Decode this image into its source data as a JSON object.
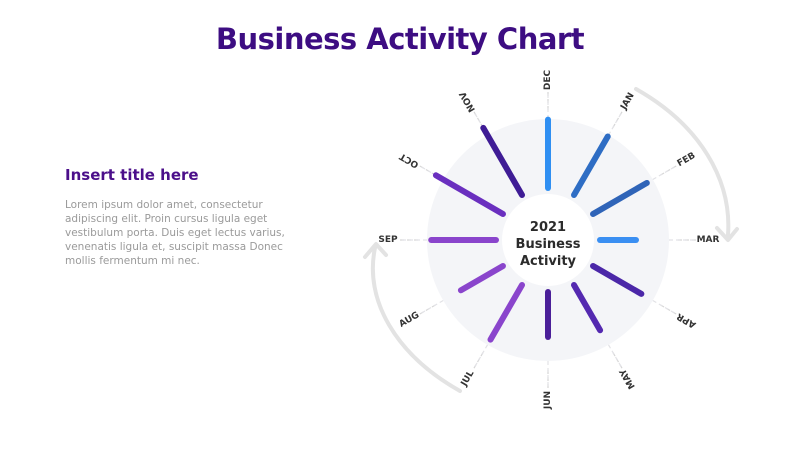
{
  "title": "Business Activity Chart",
  "side": {
    "title": "Insert title here",
    "body": "Lorem ipsum dolor amet, consectetur adipiscing elit. Proin cursus ligula eget vestibulum porta. Duis eget lectus varius, venenatis ligula et, suscipit massa Donec mollis fermentum mi nec."
  },
  "chart_data": {
    "type": "radial-bar",
    "center_label": [
      "2021",
      "Business",
      "Activity"
    ],
    "categories": [
      "DEC",
      "JAN",
      "FEB",
      "MAR",
      "APR",
      "MAY",
      "JUN",
      "JUL",
      "AUG",
      "SEP",
      "OCT",
      "NOV"
    ],
    "values": [
      0.76,
      0.75,
      0.69,
      0.4,
      0.62,
      0.58,
      0.5,
      0.7,
      0.54,
      0.72,
      0.86,
      0.86
    ],
    "colors": [
      "#2f8ff2",
      "#2e6dc4",
      "#2f64b8",
      "#3a8ff2",
      "#4b27a8",
      "#5429b0",
      "#4a1f99",
      "#8a45cc",
      "#8a45cc",
      "#8a45cc",
      "#6a2fbf",
      "#3f1c95"
    ]
  },
  "colors": {
    "title": "#3d0d82",
    "disc": "#f4f5f8",
    "arrow": "#e3e3e3"
  }
}
